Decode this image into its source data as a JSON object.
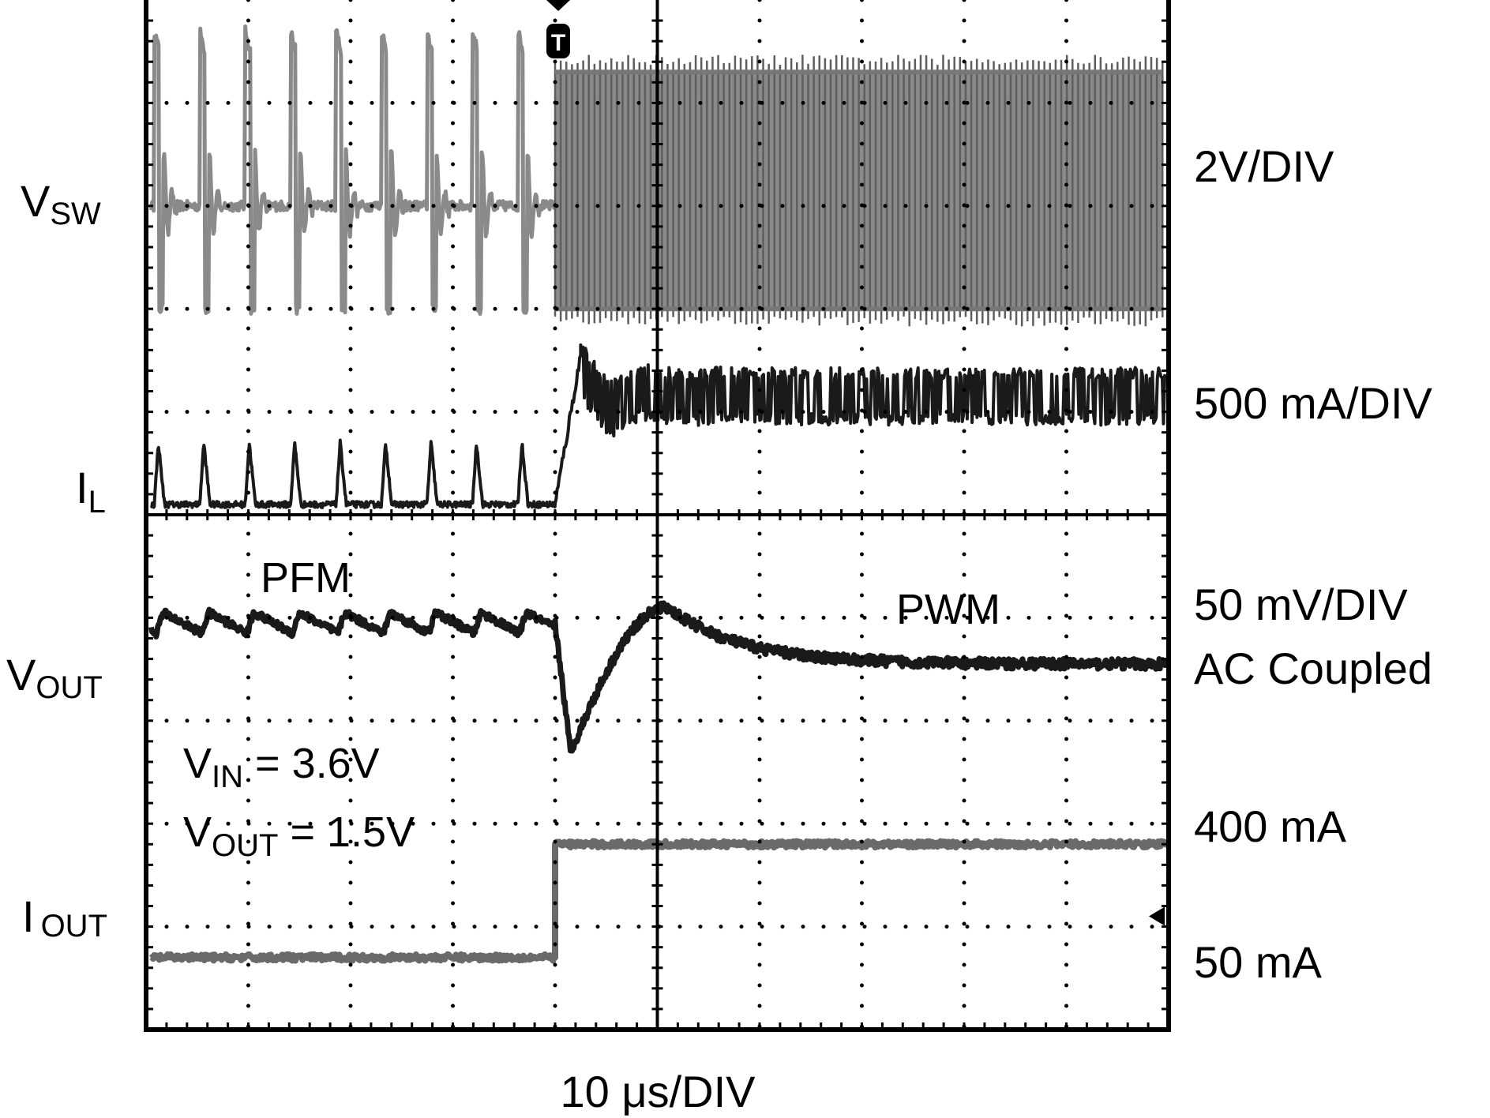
{
  "chart_data": {
    "type": "line",
    "subtype": "oscilloscope_capture",
    "grid": {
      "divisions_x": 10,
      "divisions_y": 10,
      "style": "dotted",
      "center_axes": true
    },
    "time_scale": "10 μs/DIV",
    "x_unit": "div",
    "x_range": [
      0,
      10
    ],
    "trigger_marker": {
      "label": "T",
      "x": 4.0
    },
    "ground_marker": {
      "channel": "I_OUT",
      "y_div": 1.1
    },
    "annotations": {
      "pfm": "PFM",
      "pwm": "PWM",
      "vin_main": "V",
      "vin_sub": "IN",
      "vin_rest": " = 3.6V",
      "vout_main": "V",
      "vout_sub": "OUT",
      "vout_rest": " = 1.5V"
    },
    "series": [
      {
        "name": "V_SW",
        "label_main": "V",
        "label_sub": "SW",
        "scale": "2V/DIV",
        "color": "#8a8a8a",
        "segments": [
          {
            "mode": "PFM",
            "x_range": [
              0.0,
              4.0
            ],
            "baseline_div": 8.0,
            "pulse_high_div": 9.7,
            "pulse_low_div": 6.9,
            "pulse_count": 9
          },
          {
            "mode": "PWM",
            "x_range": [
              4.0,
              10.0
            ],
            "high_div": 9.3,
            "low_div": 7.0
          }
        ]
      },
      {
        "name": "I_L",
        "label_main": "I",
        "label_sub": "L",
        "scale": "500 mA/DIV",
        "color": "#1a1a1a",
        "segments": [
          {
            "mode": "PFM",
            "x_range": [
              0.0,
              4.0
            ],
            "baseline_div": 5.1,
            "spike_peak_div": 5.7,
            "spike_count": 9
          },
          {
            "mode": "PWM",
            "x_range": [
              4.0,
              10.0
            ],
            "mean_div": 6.15,
            "ripple_div": 0.28,
            "overshoot_peak_div": 6.55
          }
        ]
      },
      {
        "name": "V_OUT",
        "label_main": "V",
        "label_sub": "OUT",
        "scale": "50 mV/DIV",
        "scale_note": "AC Coupled",
        "color": "#1a1a1a",
        "segments": [
          {
            "mode": "PFM",
            "x_range": [
              0.0,
              4.0
            ],
            "mean_div": 3.95,
            "ripple_div": 0.2
          },
          {
            "mode": "transient",
            "min_at_x": 4.15,
            "min_div": 2.7,
            "overshoot_at_x": 5.1,
            "overshoot_div": 4.1
          },
          {
            "mode": "PWM",
            "x_range": [
              7.0,
              10.0
            ],
            "settled_div": 3.55
          }
        ]
      },
      {
        "name": "I_OUT",
        "label_main": "I",
        "label_sub": "OUT",
        "color": "#6a6a6a",
        "levels": [
          {
            "label": "400 mA",
            "x_range": [
              4.0,
              10.0
            ],
            "level_div": 1.8
          },
          {
            "label": "50 mA",
            "x_range": [
              0.0,
              4.0
            ],
            "level_div": 0.7
          }
        ],
        "step_at_x": 4.0
      }
    ]
  }
}
